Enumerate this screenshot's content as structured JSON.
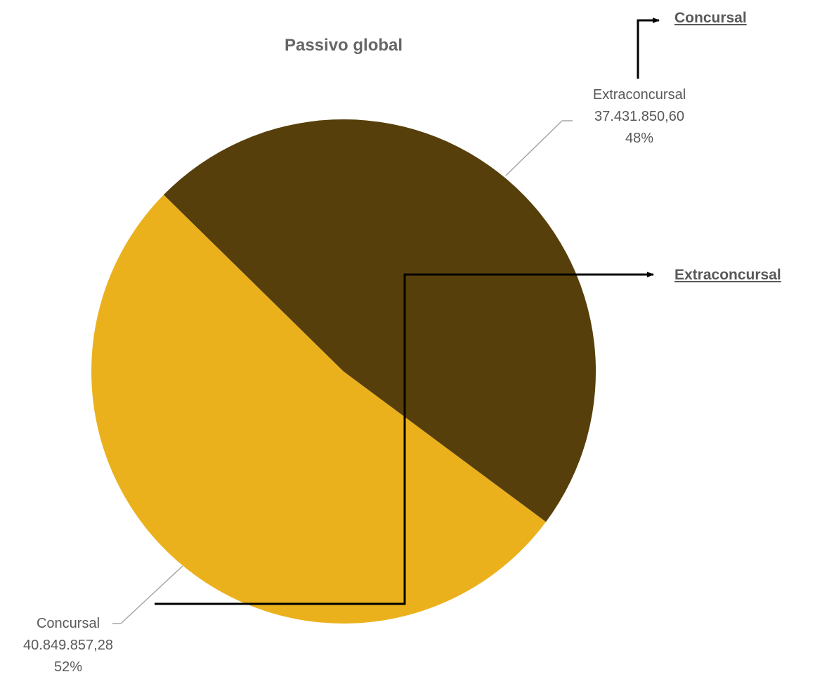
{
  "chart_data": {
    "type": "pie",
    "title": "Passivo global",
    "slices": [
      {
        "label": "Concursal",
        "value_text": "40.849.857,28",
        "value": 40849857.28,
        "percent_text": "52%",
        "color": "#EBB11D"
      },
      {
        "label": "Extraconcursal",
        "value_text": "37.431.850,60",
        "value": 37431850.6,
        "percent_text": "48%",
        "color": "#573F0B"
      }
    ],
    "legend": "none"
  },
  "links": {
    "concursal": "Concursal",
    "extraconcursal": "Extraconcursal"
  }
}
